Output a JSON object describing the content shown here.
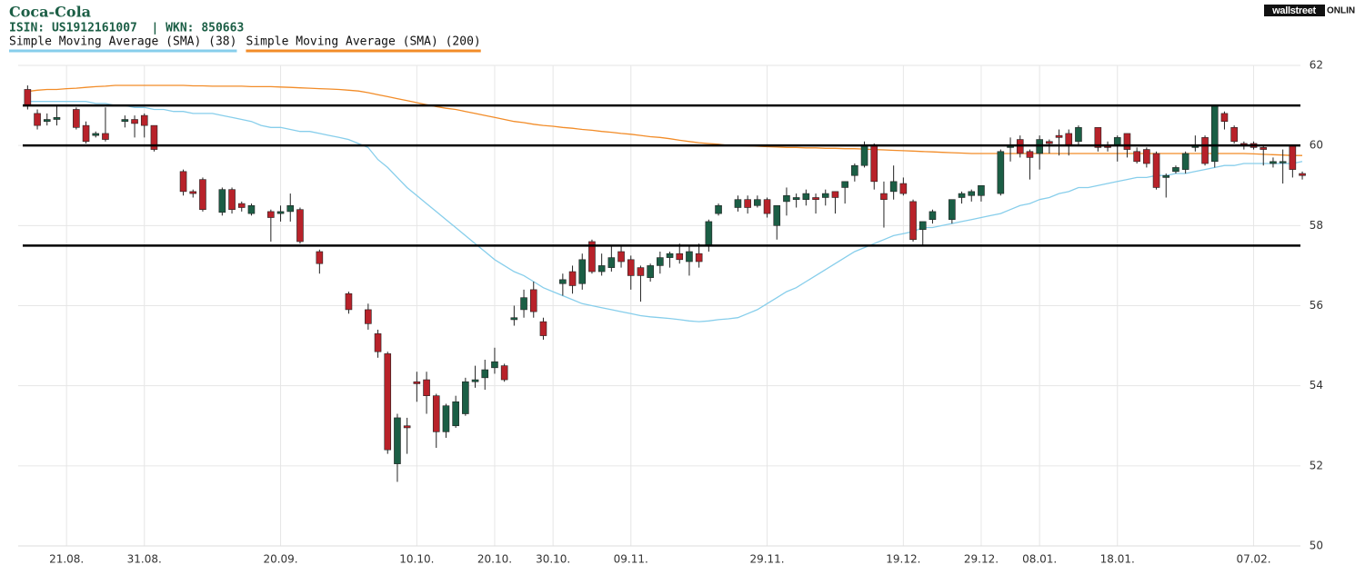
{
  "chart_data": {
    "type": "candlestick",
    "title": "Coca-Cola",
    "subtitle": "ISIN: US1912161007  | WKN: 850663",
    "logo": {
      "box": "wallstreet",
      "text": "ONLINE"
    },
    "categories": [
      null,
      null,
      null,
      null,
      "21.08.",
      null,
      null,
      null,
      null,
      null,
      null,
      null,
      "31.08.",
      null,
      null,
      null,
      null,
      null,
      null,
      null,
      null,
      null,
      null,
      null,
      null,
      null,
      "20.09.",
      null,
      null,
      null,
      null,
      null,
      null,
      null,
      null,
      null,
      null,
      null,
      null,
      null,
      "10.10.",
      null,
      null,
      null,
      null,
      null,
      null,
      null,
      "20.10.",
      null,
      null,
      null,
      null,
      null,
      "30.10.",
      null,
      null,
      null,
      null,
      null,
      null,
      null,
      "09.11.",
      null,
      null,
      null,
      null,
      null,
      null,
      null,
      null,
      null,
      null,
      null,
      null,
      null,
      "29.11.",
      null,
      null,
      null,
      null,
      null,
      null,
      null,
      null,
      null,
      null,
      null,
      null,
      null,
      "19.12.",
      null,
      null,
      null,
      null,
      null,
      null,
      null,
      "29.12.",
      null,
      null,
      null,
      null,
      null,
      "08.01.",
      null,
      null,
      null,
      null,
      null,
      null,
      null,
      "18.01.",
      null,
      null,
      null,
      null,
      null,
      null,
      null,
      null,
      null,
      null,
      null,
      null,
      null,
      "07.02.",
      null,
      null,
      null,
      null,
      null
    ],
    "open": [
      61.4,
      60.8,
      60.6,
      60.65,
      null,
      60.9,
      60.5,
      60.25,
      60.3,
      null,
      60.6,
      60.65,
      60.75,
      60.5,
      null,
      null,
      59.35,
      58.85,
      59.15,
      null,
      58.33,
      58.9,
      58.55,
      58.3,
      null,
      58.35,
      58.3,
      58.35,
      58.4,
      null,
      57.35,
      null,
      null,
      56.3,
      null,
      55.9,
      55.3,
      54.8,
      52.05,
      53.0,
      54.1,
      54.15,
      53.75,
      52.85,
      53.0,
      53.3,
      54.1,
      54.2,
      54.45,
      54.5,
      55.65,
      55.9,
      56.4,
      55.6,
      null,
      56.55,
      56.85,
      56.55,
      57.6,
      56.85,
      56.95,
      57.35,
      57.15,
      56.95,
      56.7,
      57.0,
      57.2,
      57.3,
      57.1,
      57.3,
      57.5,
      58.3,
      null,
      58.45,
      58.65,
      58.5,
      58.65,
      58.0,
      58.6,
      58.65,
      58.65,
      58.7,
      58.7,
      58.85,
      58.95,
      59.25,
      59.5,
      60.0,
      58.8,
      58.85,
      59.05,
      58.6,
      57.9,
      58.15,
      null,
      58.15,
      58.7,
      58.75,
      58.75,
      null,
      58.8,
      59.95,
      60.15,
      59.85,
      59.8,
      60.1,
      60.25,
      60.3,
      60.1,
      null,
      60.45,
      60.0,
      60.0,
      60.3,
      59.85,
      59.9,
      59.8,
      59.2,
      59.35,
      59.4,
      59.95,
      60.2,
      59.6,
      60.8,
      60.45,
      60.05,
      60.05,
      59.95,
      59.55,
      59.6,
      60.0,
      59.3
    ],
    "high": [
      61.5,
      60.9,
      60.8,
      61.0,
      null,
      60.95,
      60.6,
      60.35,
      60.95,
      null,
      60.75,
      60.75,
      60.8,
      60.5,
      null,
      null,
      59.4,
      58.9,
      59.2,
      null,
      58.95,
      58.95,
      58.6,
      58.55,
      null,
      58.4,
      58.5,
      58.8,
      58.45,
      null,
      57.4,
      null,
      null,
      56.35,
      null,
      56.05,
      55.4,
      54.85,
      53.3,
      53.2,
      54.35,
      54.35,
      53.8,
      53.55,
      53.75,
      54.2,
      54.5,
      54.65,
      54.95,
      54.55,
      56.0,
      56.4,
      56.6,
      55.7,
      null,
      56.8,
      57.0,
      57.3,
      57.65,
      57.3,
      57.5,
      57.5,
      57.25,
      57.0,
      57.05,
      57.35,
      57.35,
      57.55,
      57.5,
      57.55,
      58.15,
      58.55,
      null,
      58.75,
      58.75,
      58.75,
      58.7,
      58.5,
      58.95,
      58.8,
      58.9,
      58.8,
      58.9,
      58.85,
      59.1,
      59.55,
      60.1,
      60.05,
      59.1,
      59.5,
      59.2,
      58.65,
      58.1,
      58.4,
      null,
      58.65,
      58.85,
      58.9,
      59.0,
      null,
      59.9,
      60.2,
      60.25,
      59.9,
      60.25,
      60.15,
      60.4,
      60.4,
      60.5,
      null,
      60.45,
      60.1,
      60.25,
      60.3,
      59.95,
      59.95,
      59.85,
      59.3,
      59.5,
      59.85,
      60.25,
      60.25,
      61.0,
      60.85,
      60.5,
      60.1,
      60.1,
      60.0,
      59.7,
      59.9,
      60.0,
      59.35
    ],
    "low": [
      60.9,
      60.4,
      60.5,
      60.5,
      null,
      60.4,
      60.05,
      60.2,
      60.1,
      null,
      60.45,
      60.2,
      60.2,
      59.85,
      null,
      null,
      58.75,
      58.7,
      58.35,
      null,
      58.25,
      58.3,
      58.35,
      58.25,
      null,
      57.6,
      58.1,
      58.1,
      57.55,
      null,
      56.8,
      null,
      null,
      55.8,
      null,
      55.4,
      54.7,
      52.3,
      51.6,
      52.3,
      53.6,
      53.3,
      52.45,
      52.7,
      52.95,
      53.25,
      53.95,
      53.9,
      54.3,
      54.1,
      55.5,
      55.7,
      55.7,
      55.15,
      null,
      56.25,
      56.3,
      56.4,
      56.8,
      56.75,
      56.85,
      56.95,
      56.4,
      56.1,
      56.6,
      56.8,
      56.95,
      57.05,
      56.75,
      56.95,
      57.35,
      58.25,
      null,
      58.35,
      58.3,
      58.45,
      58.2,
      57.65,
      58.25,
      58.45,
      58.5,
      58.3,
      58.5,
      58.3,
      58.55,
      59.1,
      59.45,
      58.9,
      57.95,
      58.65,
      58.75,
      57.6,
      57.5,
      58.05,
      null,
      58.05,
      58.55,
      58.6,
      58.6,
      null,
      58.75,
      59.6,
      59.7,
      59.15,
      59.4,
      59.8,
      59.75,
      59.75,
      60.0,
      null,
      59.85,
      59.85,
      59.6,
      59.7,
      59.55,
      59.45,
      58.9,
      58.7,
      59.3,
      59.3,
      59.85,
      59.5,
      59.45,
      60.4,
      60.05,
      59.9,
      59.9,
      59.5,
      59.45,
      59.05,
      59.2,
      59.15
    ],
    "close": [
      61.0,
      60.5,
      60.65,
      60.7,
      null,
      60.45,
      60.1,
      60.3,
      60.15,
      null,
      60.65,
      60.55,
      60.5,
      59.9,
      null,
      null,
      58.85,
      58.8,
      58.4,
      null,
      58.9,
      58.4,
      58.45,
      58.5,
      null,
      58.2,
      58.35,
      58.5,
      57.6,
      null,
      57.05,
      null,
      null,
      55.9,
      null,
      55.55,
      54.85,
      52.4,
      53.2,
      52.95,
      54.05,
      53.75,
      52.85,
      53.5,
      53.6,
      54.1,
      54.15,
      54.4,
      54.6,
      54.15,
      55.7,
      56.2,
      55.85,
      55.25,
      null,
      56.65,
      56.5,
      57.15,
      56.85,
      57.0,
      57.2,
      57.1,
      56.75,
      56.75,
      57.0,
      57.2,
      57.3,
      57.15,
      57.35,
      57.1,
      58.1,
      58.5,
      null,
      58.65,
      58.45,
      58.65,
      58.3,
      58.5,
      58.75,
      58.7,
      58.8,
      58.65,
      58.8,
      58.7,
      59.1,
      59.5,
      60.0,
      59.1,
      58.65,
      59.1,
      58.8,
      57.65,
      58.1,
      58.35,
      null,
      58.65,
      58.8,
      58.85,
      59.0,
      null,
      59.85,
      60.0,
      59.8,
      59.7,
      60.15,
      60.05,
      60.2,
      60.0,
      60.45,
      null,
      59.95,
      59.95,
      60.2,
      59.9,
      59.6,
      59.55,
      58.95,
      59.25,
      59.45,
      59.8,
      60.0,
      59.55,
      61.0,
      60.6,
      60.1,
      60.0,
      59.95,
      59.9,
      59.6,
      59.6,
      59.4,
      59.25
    ],
    "up_color": "#1b5e45",
    "down_color": "#b8222a",
    "series": [
      {
        "name": "Simple Moving Average (SMA) (38)",
        "color": "#87ceeb",
        "values": [
          61.1,
          61.1,
          61.1,
          61.1,
          61.1,
          61.1,
          61.1,
          61.05,
          61.05,
          61.0,
          61.0,
          60.95,
          60.95,
          60.9,
          60.9,
          60.85,
          60.85,
          60.8,
          60.8,
          60.8,
          60.75,
          60.7,
          60.65,
          60.6,
          60.5,
          60.45,
          60.45,
          60.4,
          60.35,
          60.35,
          60.3,
          60.25,
          60.2,
          60.15,
          60.05,
          59.95,
          59.65,
          59.45,
          59.2,
          58.95,
          58.75,
          58.55,
          58.35,
          58.15,
          57.95,
          57.75,
          57.55,
          57.35,
          57.15,
          57.0,
          56.85,
          56.75,
          56.6,
          56.45,
          56.35,
          56.25,
          56.15,
          56.05,
          56.0,
          55.95,
          55.9,
          55.85,
          55.8,
          55.75,
          55.72,
          55.7,
          55.68,
          55.65,
          55.62,
          55.6,
          55.62,
          55.65,
          55.67,
          55.7,
          55.8,
          55.9,
          56.05,
          56.2,
          56.35,
          56.45,
          56.6,
          56.75,
          56.9,
          57.05,
          57.2,
          57.35,
          57.45,
          57.55,
          57.65,
          57.75,
          57.8,
          57.85,
          57.95,
          57.95,
          58.0,
          58.05,
          58.1,
          58.15,
          58.2,
          58.25,
          58.3,
          58.4,
          58.5,
          58.55,
          58.65,
          58.7,
          58.8,
          58.85,
          58.95,
          58.95,
          59.0,
          59.05,
          59.1,
          59.15,
          59.2,
          59.2,
          59.25,
          59.25,
          59.3,
          59.3,
          59.35,
          59.4,
          59.45,
          59.5,
          59.5,
          59.55,
          59.55,
          59.55,
          59.55,
          59.55,
          59.55,
          59.6
        ]
      },
      {
        "name": "Simple Moving Average (SMA) (200)",
        "color": "#f28c28",
        "values": [
          61.35,
          61.38,
          61.4,
          61.4,
          61.42,
          61.43,
          61.45,
          61.47,
          61.48,
          61.5,
          61.5,
          61.5,
          61.5,
          61.5,
          61.5,
          61.5,
          61.5,
          61.49,
          61.49,
          61.48,
          61.48,
          61.48,
          61.48,
          61.47,
          61.47,
          61.47,
          61.46,
          61.45,
          61.44,
          61.43,
          61.42,
          61.41,
          61.4,
          61.38,
          61.36,
          61.32,
          61.27,
          61.22,
          61.17,
          61.12,
          61.07,
          61.02,
          60.97,
          60.93,
          60.9,
          60.85,
          60.8,
          60.75,
          60.7,
          60.65,
          60.6,
          60.57,
          60.53,
          60.5,
          60.48,
          60.45,
          60.43,
          60.4,
          60.38,
          60.35,
          60.33,
          60.3,
          60.28,
          60.25,
          60.22,
          60.2,
          60.17,
          60.13,
          60.1,
          60.07,
          60.05,
          60.03,
          60.0,
          60.0,
          59.99,
          59.98,
          59.97,
          59.96,
          59.95,
          59.95,
          59.94,
          59.94,
          59.93,
          59.93,
          59.92,
          59.92,
          59.91,
          59.9,
          59.89,
          59.88,
          59.87,
          59.86,
          59.85,
          59.84,
          59.83,
          59.82,
          59.81,
          59.8,
          59.8,
          59.8,
          59.8,
          59.8,
          59.8,
          59.8,
          59.8,
          59.8,
          59.8,
          59.8,
          59.8,
          59.8,
          59.8,
          59.8,
          59.8,
          59.8,
          59.8,
          59.8,
          59.8,
          59.8,
          59.8,
          59.8,
          59.8,
          59.8,
          59.8,
          59.8,
          59.8,
          59.8,
          59.79,
          59.78,
          59.77,
          59.76,
          59.75,
          59.75
        ]
      }
    ],
    "hlines": [
      61,
      60,
      57.5
    ],
    "ylim": [
      50,
      62
    ],
    "yticks": [
      50,
      52,
      54,
      56,
      58,
      60,
      62
    ],
    "grid": true
  }
}
